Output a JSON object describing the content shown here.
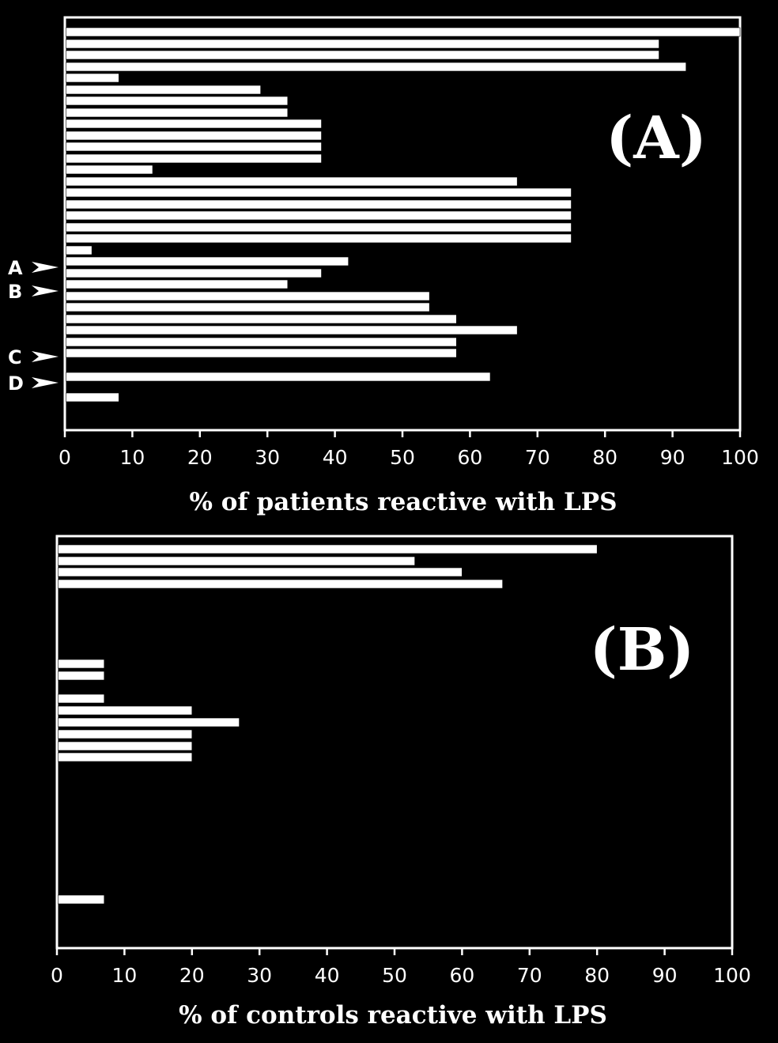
{
  "chart_data": [
    {
      "type": "bar",
      "orientation": "horizontal",
      "panel_label": "(A)",
      "xlabel": "% of patients reactive with LPS",
      "xlim": [
        0,
        100
      ],
      "xticks": [
        "0",
        "10",
        "20",
        "30",
        "40",
        "50",
        "60",
        "70",
        "80",
        "90",
        "100"
      ],
      "values": [
        100,
        88,
        88,
        92,
        8,
        29,
        33,
        33,
        38,
        38,
        38,
        38,
        13,
        67,
        75,
        75,
        75,
        75,
        75,
        4,
        42,
        38,
        33,
        54,
        54,
        58,
        67,
        58,
        58,
        63,
        8
      ],
      "markers": [
        {
          "label": "A",
          "bar": 20
        },
        {
          "label": "B",
          "bar": 22
        },
        {
          "label": "C",
          "bar": 28
        },
        {
          "label": "D",
          "bar": 29
        }
      ]
    },
    {
      "type": "bar",
      "orientation": "horizontal",
      "panel_label": "(B)",
      "xlabel": "% of controls reactive with LPS",
      "xlim": [
        0,
        100
      ],
      "xticks": [
        "0",
        "10",
        "20",
        "30",
        "40",
        "50",
        "60",
        "70",
        "80",
        "90",
        "100"
      ],
      "values": [
        80,
        53,
        60,
        66,
        7,
        7,
        7,
        20,
        27,
        20,
        20,
        20,
        7
      ]
    }
  ]
}
